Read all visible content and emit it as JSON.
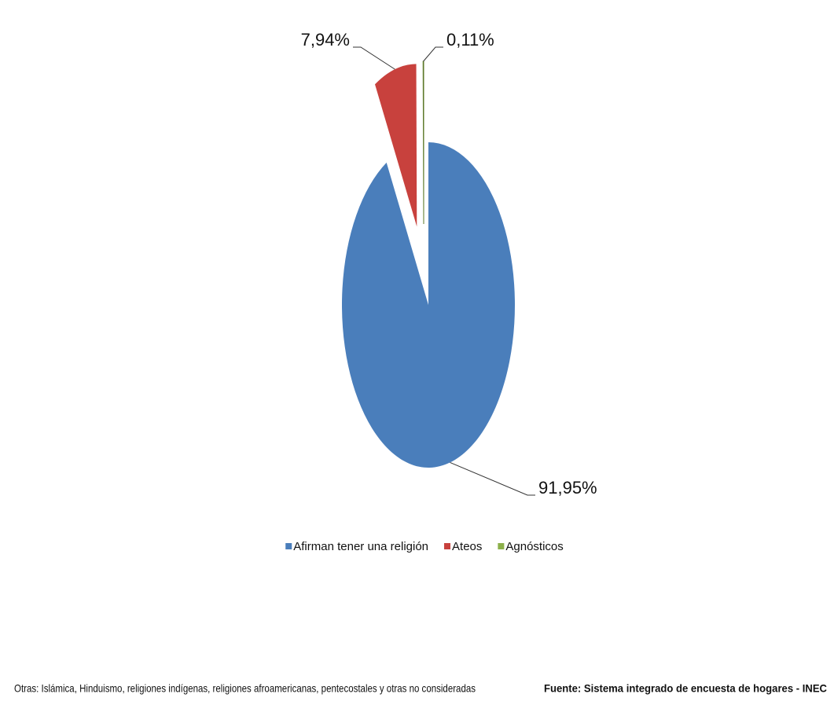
{
  "chart_data": {
    "type": "pie",
    "categories": [
      "Afirman tener una religión",
      "Ateos",
      "Agnósticos"
    ],
    "values": [
      91.95,
      7.94,
      0.11
    ],
    "value_labels": [
      "91,95%",
      "7,94%",
      "0,11%"
    ],
    "colors": [
      "#4a7ebb",
      "#c8413d",
      "#8cb04a"
    ],
    "legend": "bottom"
  },
  "footnote": "Otras: Islámica, Hinduismo, religiones indígenas, religiones afroamericanas, pentecostales y otras no consideradas",
  "source": "Fuente: Sistema integrado de encuesta de hogares - INEC"
}
